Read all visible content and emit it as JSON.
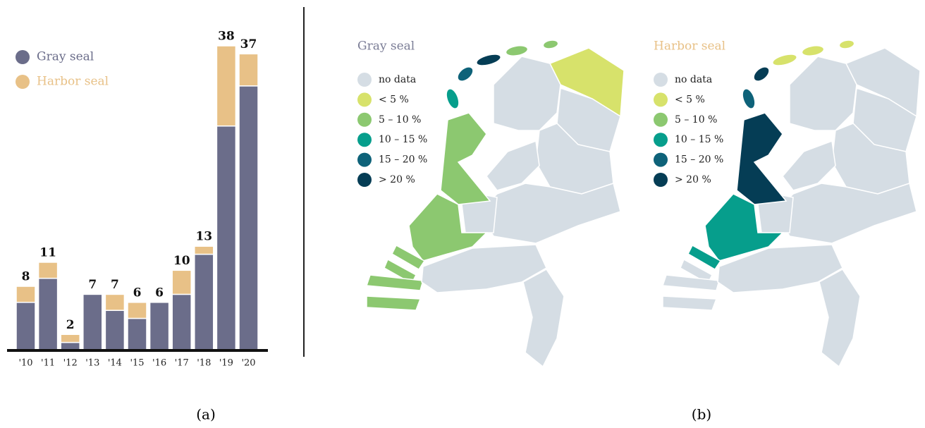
{
  "chart_data": {
    "type": "stacked-bar",
    "categories": [
      "'10",
      "'11",
      "'12",
      "'13",
      "'14",
      "'15",
      "'16",
      "'17",
      "'18",
      "'19",
      "'20"
    ],
    "series": [
      {
        "name": "Gray seal",
        "color": "#6b6d8a",
        "values": [
          6,
          9,
          1,
          7,
          5,
          4,
          6,
          7,
          12,
          28,
          33
        ]
      },
      {
        "name": "Harbor seal",
        "color": "#e8c187",
        "values": [
          2,
          2,
          1,
          0,
          2,
          2,
          0,
          3,
          1,
          10,
          4
        ]
      }
    ],
    "totals": [
      8,
      11,
      2,
      7,
      7,
      6,
      6,
      10,
      13,
      38,
      37
    ],
    "ylim": [
      0,
      38
    ]
  },
  "maps": [
    {
      "title": "Gray seal",
      "title_color": "#7b7d96",
      "region_classes": [
        1,
        0,
        0,
        0,
        0,
        0,
        0,
        2,
        2,
        2,
        2,
        2,
        2,
        0,
        0,
        3,
        4,
        5,
        2,
        2
      ]
    },
    {
      "title": "Harbor seal",
      "title_color": "#e8c187",
      "region_classes": [
        0,
        0,
        0,
        0,
        0,
        0,
        0,
        5,
        3,
        3,
        0,
        0,
        0,
        0,
        0,
        4,
        5,
        1,
        1,
        1
      ]
    }
  ],
  "legend": [
    {
      "label": "no data",
      "color": "#d5dde4"
    },
    {
      "label": "< 5 %",
      "color": "#d7e26b"
    },
    {
      "label": "5 – 10 %",
      "color": "#8cc870"
    },
    {
      "label": "10 – 15 %",
      "color": "#069e8c"
    },
    {
      "label": "15 – 20 %",
      "color": "#0e6279"
    },
    {
      "label": "> 20 %",
      "color": "#053d55"
    }
  ],
  "panel_labels": [
    "(a)",
    "(b)"
  ]
}
